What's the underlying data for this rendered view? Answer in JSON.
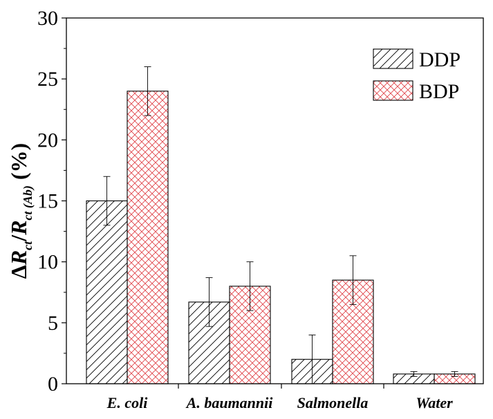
{
  "chart_data": {
    "type": "bar",
    "title": "",
    "xlabel": "",
    "ylabel": {
      "delta": "Δ",
      "r1": "R",
      "sub1": "ct",
      "slash": "/",
      "r2": "R",
      "sub2": "ct (Ab)",
      "unit": "(%)"
    },
    "categories": [
      "E. coli",
      "A. baumannii",
      "Salmonella",
      "Water"
    ],
    "series": [
      {
        "name": "DDP",
        "values": [
          15,
          6.7,
          2,
          0.8
        ],
        "errors": [
          2,
          2,
          2,
          0.2
        ],
        "pattern": "diagonal-hatch",
        "color": "#000000"
      },
      {
        "name": "BDP",
        "values": [
          24,
          8,
          8.5,
          0.8
        ],
        "errors": [
          2,
          2,
          2,
          0.2
        ],
        "pattern": "cross-hatch",
        "color": "#e0454b"
      }
    ],
    "ylim": [
      0,
      30
    ],
    "yticks": [
      "0",
      "5",
      "10",
      "15",
      "20",
      "25",
      "30"
    ],
    "legend_position": "top-right",
    "grid": false
  }
}
